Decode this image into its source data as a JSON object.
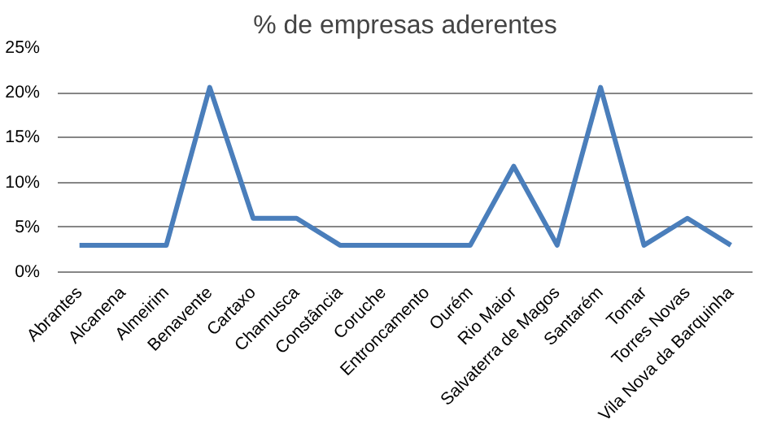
{
  "chart_data": {
    "type": "line",
    "title": "% de empresas aderentes",
    "categories": [
      "Abrantes",
      "Alcanena",
      "Almeirim",
      "Benavente",
      "Cartaxo",
      "Chamusca",
      "Constância",
      "Coruche",
      "Entroncamento",
      "Ourém",
      "Rio Maior",
      "Salvaterra de Magos",
      "Santarém",
      "Tomar",
      "Torres Novas",
      "Vila Nova da Barquinha"
    ],
    "series": [
      {
        "color": "#4a7ebb",
        "values": [
          3,
          3,
          3,
          20.6,
          6,
          6,
          3,
          3,
          3,
          3,
          11.8,
          3,
          20.6,
          3,
          6,
          3
        ]
      }
    ],
    "ylim": [
      0,
      25
    ],
    "yticks": [
      {
        "value": 0,
        "label": "0%"
      },
      {
        "value": 5,
        "label": "5%"
      },
      {
        "value": 10,
        "label": "10%"
      },
      {
        "value": 15,
        "label": "15%"
      },
      {
        "value": 20,
        "label": "20%"
      },
      {
        "value": 25,
        "label": "25%"
      }
    ],
    "grid": "y",
    "marker": "none",
    "line_style": "solid"
  }
}
